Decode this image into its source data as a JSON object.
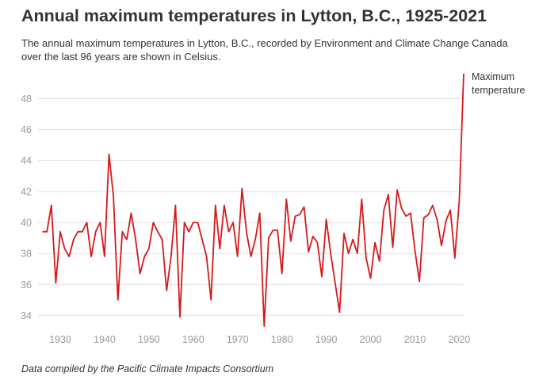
{
  "header": {
    "title": "Annual maximum temperatures in Lytton, B.C., 1925-2021",
    "subtitle": "The annual maximum temperatures in Lytton, B.C., recorded by Environment and Climate Change Canada over the last 96 years are shown in Celsius."
  },
  "footer": {
    "source": "Data compiled by the Pacific Climate Impacts Consortium"
  },
  "chart_data": {
    "type": "line",
    "title": "Annual maximum temperatures in Lytton, B.C., 1925-2021",
    "xlabel": "",
    "ylabel": "",
    "xlim": [
      1925,
      2021
    ],
    "ylim": [
      33,
      49.5
    ],
    "x_ticks": [
      1930,
      1940,
      1950,
      1960,
      1970,
      1980,
      1990,
      2000,
      2010,
      2020
    ],
    "y_ticks": [
      34,
      36,
      38,
      40,
      42,
      44,
      46,
      48
    ],
    "grid": "horizontal",
    "series": [
      {
        "name": "Maximum temperature",
        "color": "#d7191c",
        "x": [
          1926,
          1927,
          1928,
          1929,
          1930,
          1931,
          1932,
          1933,
          1934,
          1935,
          1936,
          1937,
          1938,
          1939,
          1940,
          1941,
          1942,
          1943,
          1944,
          1945,
          1946,
          1947,
          1948,
          1949,
          1950,
          1951,
          1952,
          1953,
          1954,
          1955,
          1956,
          1957,
          1958,
          1959,
          1960,
          1961,
          1962,
          1963,
          1964,
          1965,
          1966,
          1967,
          1968,
          1969,
          1970,
          1971,
          1972,
          1973,
          1974,
          1975,
          1976,
          1977,
          1978,
          1979,
          1980,
          1981,
          1982,
          1983,
          1984,
          1985,
          1986,
          1987,
          1988,
          1989,
          1990,
          1991,
          1992,
          1993,
          1994,
          1995,
          1996,
          1997,
          1998,
          1999,
          2000,
          2001,
          2002,
          2003,
          2004,
          2005,
          2006,
          2007,
          2008,
          2009,
          2010,
          2011,
          2012,
          2013,
          2014,
          2015,
          2016,
          2017,
          2018,
          2019,
          2020,
          2021
        ],
        "values": [
          39.4,
          39.4,
          41.1,
          36.1,
          39.4,
          38.3,
          37.8,
          38.9,
          39.4,
          39.4,
          40.0,
          37.8,
          39.4,
          40.0,
          37.8,
          44.4,
          41.7,
          35.0,
          39.4,
          38.9,
          40.6,
          38.9,
          36.7,
          37.8,
          38.3,
          40.0,
          39.4,
          38.9,
          35.6,
          37.8,
          41.1,
          33.9,
          40.0,
          39.4,
          40.0,
          40.0,
          38.9,
          37.8,
          35.0,
          41.1,
          38.3,
          41.1,
          39.4,
          40.0,
          37.8,
          42.2,
          39.4,
          37.8,
          38.9,
          40.6,
          33.3,
          39.0,
          39.5,
          39.5,
          36.7,
          41.5,
          38.8,
          40.4,
          40.5,
          41.0,
          38.1,
          39.1,
          38.7,
          36.5,
          40.2,
          38.0,
          36.1,
          34.2,
          39.3,
          38.0,
          38.9,
          38.0,
          41.5,
          37.7,
          36.4,
          38.7,
          37.5,
          40.8,
          41.8,
          38.4,
          42.1,
          40.9,
          40.4,
          40.6,
          38.2,
          36.2,
          40.3,
          40.5,
          41.1,
          40.2,
          38.5,
          40.1,
          40.8,
          37.7,
          41.4,
          49.6
        ]
      }
    ]
  }
}
